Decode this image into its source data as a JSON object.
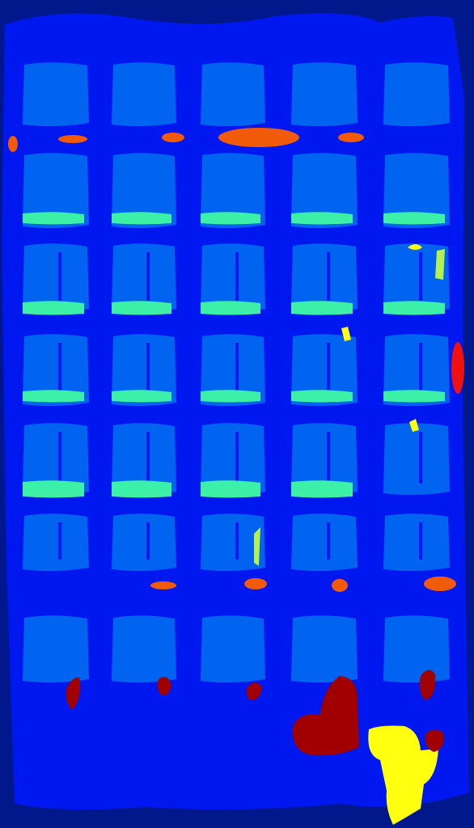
{
  "colors": {
    "border": "#00188c",
    "facade": "#0018f0",
    "window": "#0064f0",
    "sill": "#3cf0a8",
    "ledge": "#f05a08",
    "red": "#a00000",
    "bright_red": "#f01010",
    "yellow": "#ffff10",
    "lime": "#b4f050"
  },
  "grid": {
    "columns": 5,
    "rows": 7
  }
}
